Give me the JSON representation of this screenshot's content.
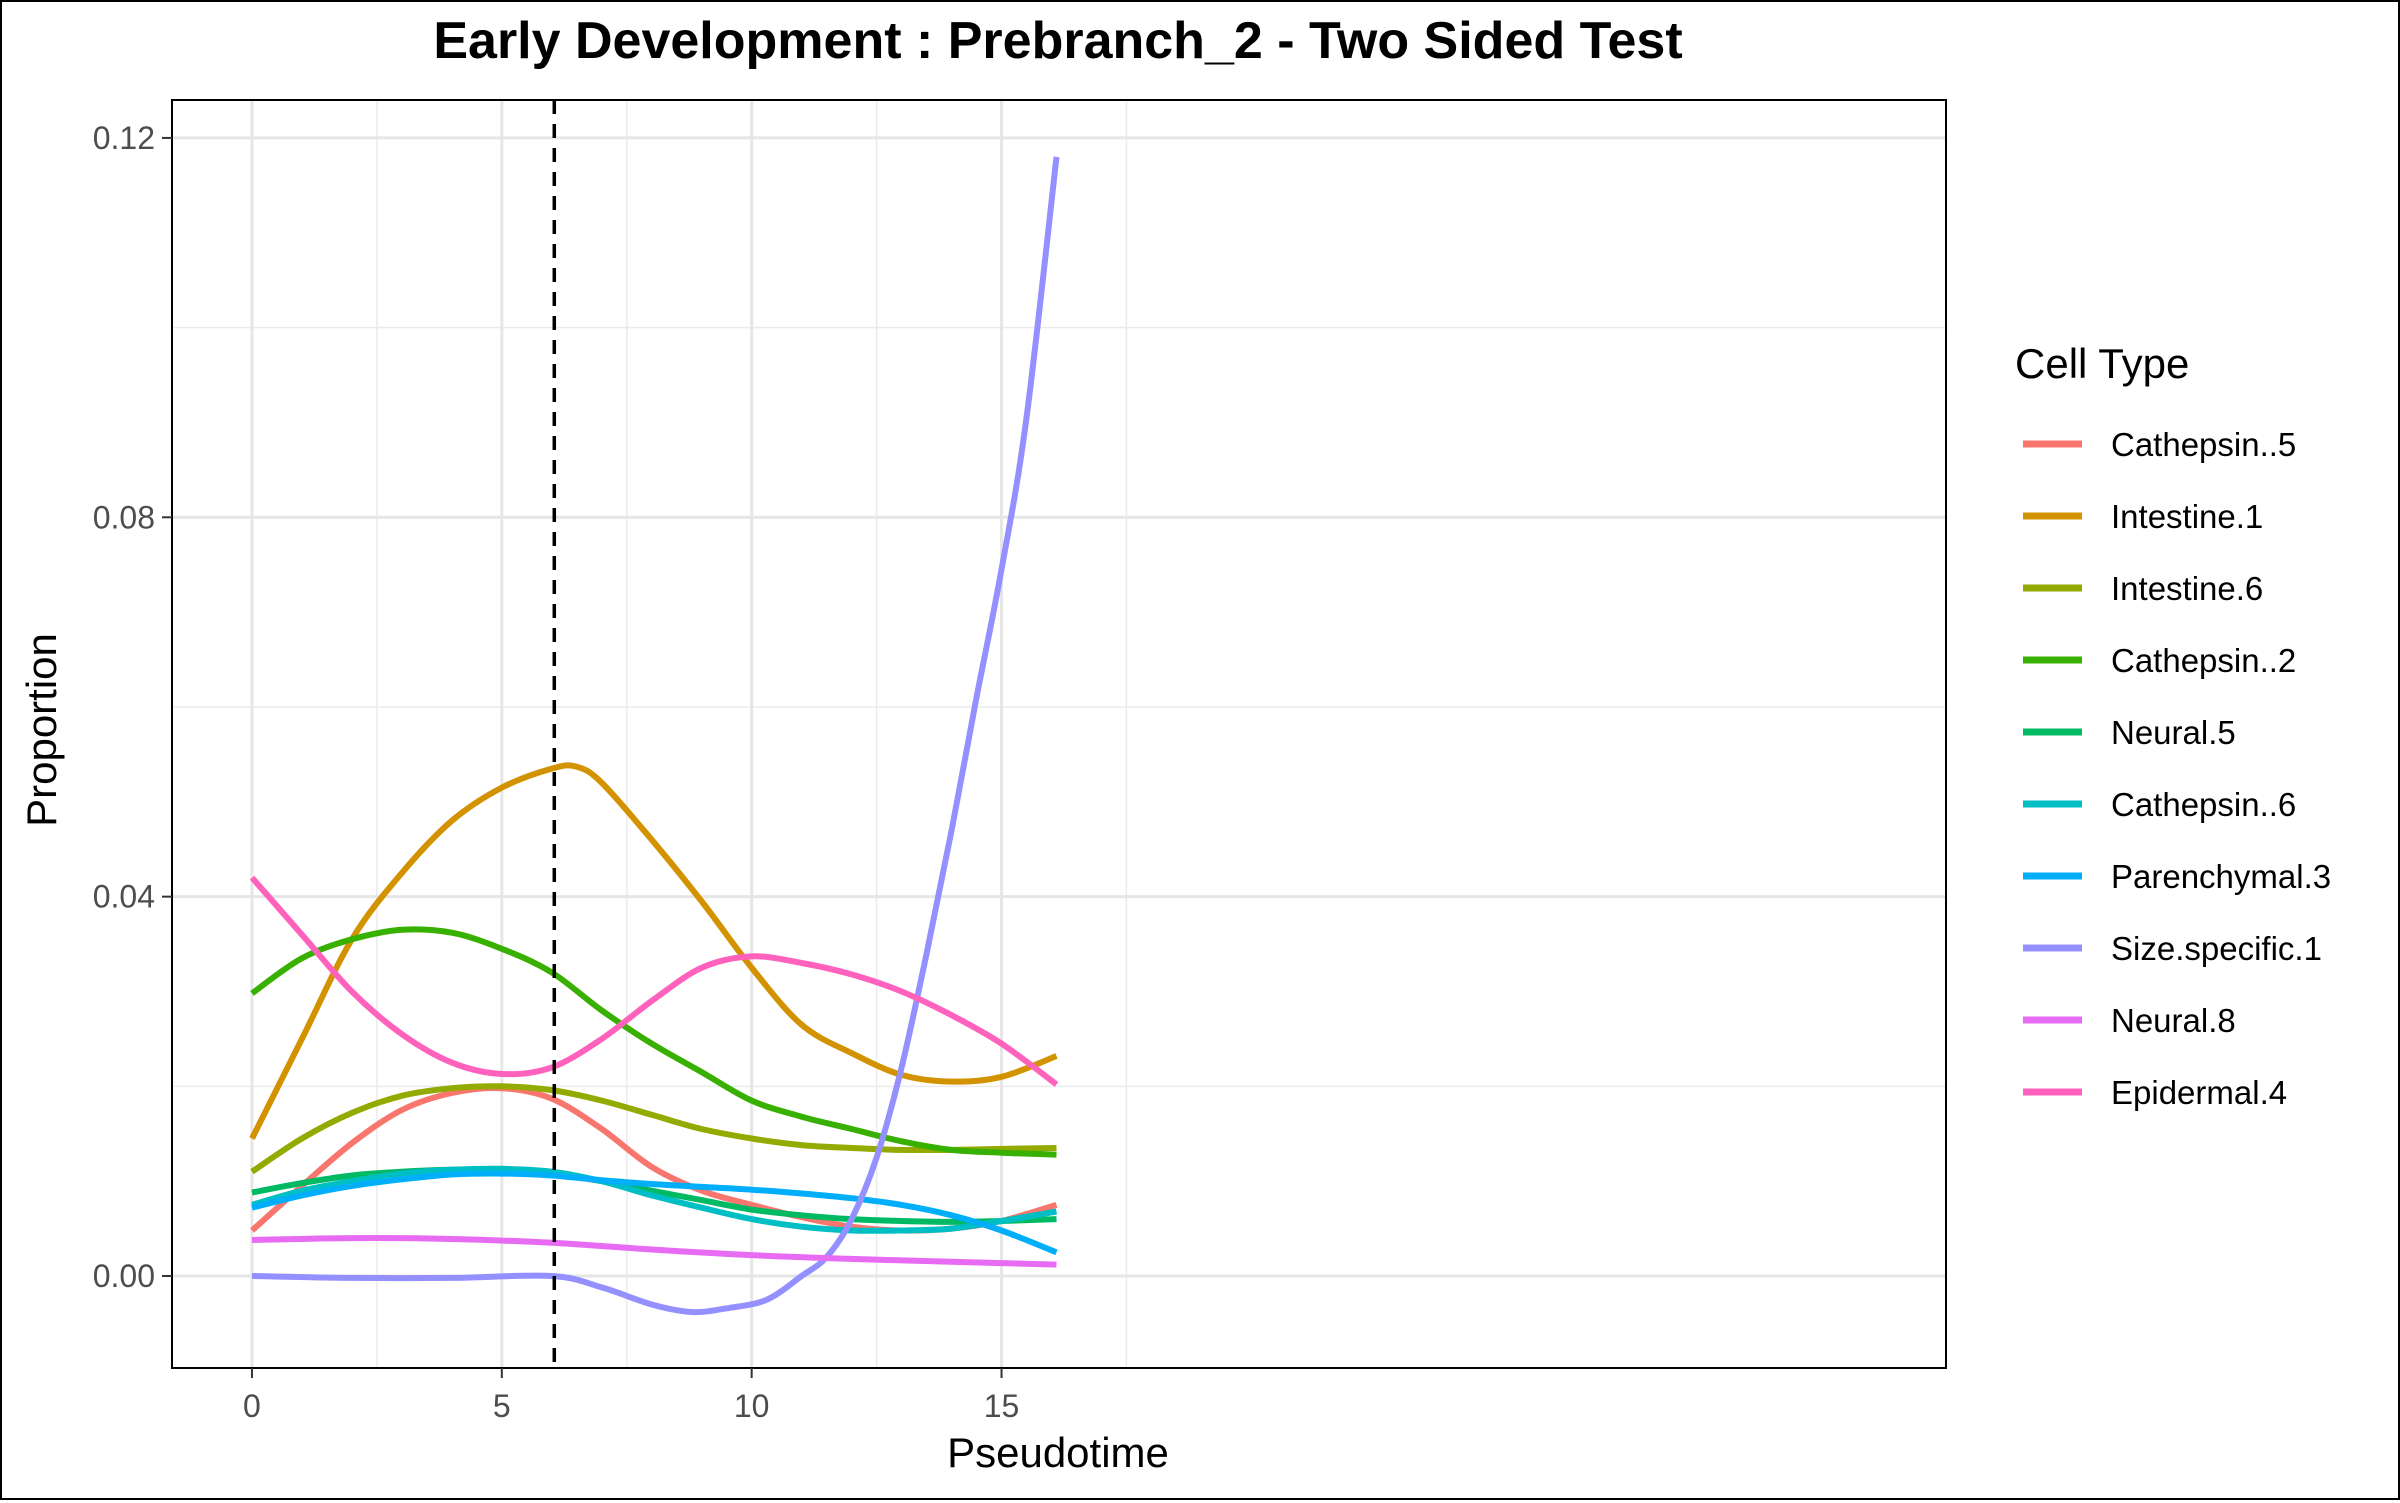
{
  "chart_data": {
    "type": "line",
    "title": "Early Development : Prebranch_2 - Two Sided Test",
    "xlabel": "Pseudotime",
    "ylabel": "Proportion",
    "xlim": [
      -1.6,
      33.9
    ],
    "ylim": [
      -0.0097,
      0.124
    ],
    "x_ticks": [
      0,
      5,
      10,
      15
    ],
    "x_tick_labels": [
      "0",
      "5",
      "10",
      "15"
    ],
    "y_ticks": [
      0.0,
      0.04,
      0.08,
      0.12
    ],
    "y_tick_labels": [
      "0.00",
      "0.04",
      "0.08",
      "0.12"
    ],
    "grid": true,
    "vline_x": 6.05,
    "legend": {
      "title": "Cell Type",
      "position": "right"
    },
    "series": [
      {
        "name": "Cathepsin..5",
        "color": "#F8766D",
        "points": [
          [
            0,
            0.0048
          ],
          [
            1,
            0.0095
          ],
          [
            2,
            0.014
          ],
          [
            3,
            0.0175
          ],
          [
            4,
            0.0193
          ],
          [
            5,
            0.0198
          ],
          [
            6,
            0.0187
          ],
          [
            7,
            0.0155
          ],
          [
            8,
            0.0115
          ],
          [
            9,
            0.009
          ],
          [
            10,
            0.0075
          ],
          [
            11,
            0.0062
          ],
          [
            12,
            0.0052
          ],
          [
            13,
            0.0048
          ],
          [
            14,
            0.005
          ],
          [
            15,
            0.0058
          ],
          [
            16.1,
            0.0075
          ]
        ]
      },
      {
        "name": "Intestine.1",
        "color": "#D39200",
        "points": [
          [
            0,
            0.0145
          ],
          [
            1,
            0.025
          ],
          [
            2,
            0.0355
          ],
          [
            3,
            0.0425
          ],
          [
            4,
            0.048
          ],
          [
            5,
            0.0515
          ],
          [
            6,
            0.0535
          ],
          [
            6.5,
            0.0537
          ],
          [
            7,
            0.052
          ],
          [
            8,
            0.046
          ],
          [
            9,
            0.0395
          ],
          [
            10,
            0.0325
          ],
          [
            11,
            0.0265
          ],
          [
            12,
            0.0235
          ],
          [
            13,
            0.0212
          ],
          [
            14,
            0.0205
          ],
          [
            15,
            0.021
          ],
          [
            16.1,
            0.0232
          ]
        ]
      },
      {
        "name": "Intestine.6",
        "color": "#93AA00",
        "points": [
          [
            0,
            0.011
          ],
          [
            1,
            0.0145
          ],
          [
            2,
            0.0172
          ],
          [
            3,
            0.019
          ],
          [
            4,
            0.0198
          ],
          [
            5,
            0.02
          ],
          [
            6,
            0.0196
          ],
          [
            7,
            0.0185
          ],
          [
            8,
            0.017
          ],
          [
            9,
            0.0155
          ],
          [
            10,
            0.0145
          ],
          [
            11,
            0.0138
          ],
          [
            12,
            0.0135
          ],
          [
            13,
            0.0133
          ],
          [
            14,
            0.0133
          ],
          [
            15,
            0.0134
          ],
          [
            16.1,
            0.0135
          ]
        ]
      },
      {
        "name": "Cathepsin..2",
        "color": "#38B000",
        "points": [
          [
            0,
            0.0298
          ],
          [
            1,
            0.0335
          ],
          [
            2,
            0.0355
          ],
          [
            3,
            0.0365
          ],
          [
            4,
            0.0362
          ],
          [
            5,
            0.0345
          ],
          [
            6,
            0.032
          ],
          [
            7,
            0.028
          ],
          [
            8,
            0.0245
          ],
          [
            9,
            0.0215
          ],
          [
            10,
            0.0185
          ],
          [
            11,
            0.0168
          ],
          [
            12,
            0.0155
          ],
          [
            13,
            0.0142
          ],
          [
            14,
            0.0133
          ],
          [
            15,
            0.013
          ],
          [
            16.1,
            0.0128
          ]
        ]
      },
      {
        "name": "Neural.5",
        "color": "#00BA63",
        "points": [
          [
            0,
            0.0088
          ],
          [
            1,
            0.0098
          ],
          [
            2,
            0.0106
          ],
          [
            3,
            0.011
          ],
          [
            4,
            0.0112
          ],
          [
            5,
            0.0112
          ],
          [
            6,
            0.0108
          ],
          [
            7,
            0.01
          ],
          [
            8,
            0.009
          ],
          [
            9,
            0.008
          ],
          [
            10,
            0.007
          ],
          [
            11,
            0.0064
          ],
          [
            12,
            0.006
          ],
          [
            13,
            0.0058
          ],
          [
            14,
            0.0057
          ],
          [
            15,
            0.0058
          ],
          [
            16.1,
            0.006
          ]
        ]
      },
      {
        "name": "Cathepsin..6",
        "color": "#00BFC4",
        "points": [
          [
            0,
            0.0075
          ],
          [
            1,
            0.009
          ],
          [
            2,
            0.01
          ],
          [
            3,
            0.0108
          ],
          [
            4,
            0.0112
          ],
          [
            5,
            0.0113
          ],
          [
            6,
            0.011
          ],
          [
            7,
            0.01
          ],
          [
            8,
            0.0085
          ],
          [
            9,
            0.0072
          ],
          [
            10,
            0.006
          ],
          [
            11,
            0.0052
          ],
          [
            12,
            0.0048
          ],
          [
            13,
            0.0048
          ],
          [
            14,
            0.005
          ],
          [
            15,
            0.0058
          ],
          [
            16.1,
            0.0068
          ]
        ]
      },
      {
        "name": "Parenchymal.3",
        "color": "#00AEF9",
        "points": [
          [
            0,
            0.0072
          ],
          [
            1,
            0.0085
          ],
          [
            2,
            0.0095
          ],
          [
            3,
            0.0102
          ],
          [
            4,
            0.0107
          ],
          [
            5,
            0.0108
          ],
          [
            6,
            0.0106
          ],
          [
            7,
            0.0101
          ],
          [
            8,
            0.0097
          ],
          [
            9,
            0.0094
          ],
          [
            10,
            0.0091
          ],
          [
            11,
            0.0087
          ],
          [
            12,
            0.0082
          ],
          [
            13,
            0.0075
          ],
          [
            14,
            0.0064
          ],
          [
            15,
            0.0048
          ],
          [
            16.1,
            0.0025
          ]
        ]
      },
      {
        "name": "Size.specific.1",
        "color": "#9590FF",
        "points": [
          [
            0,
            0.0
          ],
          [
            2,
            -0.0002
          ],
          [
            4,
            -0.0002
          ],
          [
            6,
            0.0
          ],
          [
            7,
            -0.0012
          ],
          [
            8,
            -0.003
          ],
          [
            8.8,
            -0.0038
          ],
          [
            9.5,
            -0.0034
          ],
          [
            10.3,
            -0.0025
          ],
          [
            11,
            0.0
          ],
          [
            11.5,
            0.002
          ],
          [
            12,
            0.006
          ],
          [
            12.5,
            0.0125
          ],
          [
            13,
            0.022
          ],
          [
            13.5,
            0.034
          ],
          [
            14,
            0.047
          ],
          [
            14.5,
            0.061
          ],
          [
            15,
            0.0745
          ],
          [
            15.5,
            0.0905
          ],
          [
            16.1,
            0.118
          ]
        ]
      },
      {
        "name": "Neural.8",
        "color": "#E76BF3",
        "points": [
          [
            0,
            0.0038
          ],
          [
            2,
            0.004
          ],
          [
            4,
            0.0039
          ],
          [
            6,
            0.0035
          ],
          [
            8,
            0.0028
          ],
          [
            10,
            0.0022
          ],
          [
            12,
            0.0018
          ],
          [
            14,
            0.0015
          ],
          [
            16.1,
            0.0012
          ]
        ]
      },
      {
        "name": "Epidermal.4",
        "color": "#FF62BC",
        "points": [
          [
            0,
            0.042
          ],
          [
            1,
            0.036
          ],
          [
            2,
            0.03
          ],
          [
            3,
            0.0255
          ],
          [
            4,
            0.0225
          ],
          [
            5,
            0.0213
          ],
          [
            6,
            0.022
          ],
          [
            7,
            0.025
          ],
          [
            8,
            0.029
          ],
          [
            9,
            0.0325
          ],
          [
            10,
            0.0337
          ],
          [
            11,
            0.033
          ],
          [
            12,
            0.0318
          ],
          [
            13,
            0.03
          ],
          [
            14,
            0.0275
          ],
          [
            15,
            0.0245
          ],
          [
            16.1,
            0.0202
          ]
        ]
      }
    ]
  }
}
